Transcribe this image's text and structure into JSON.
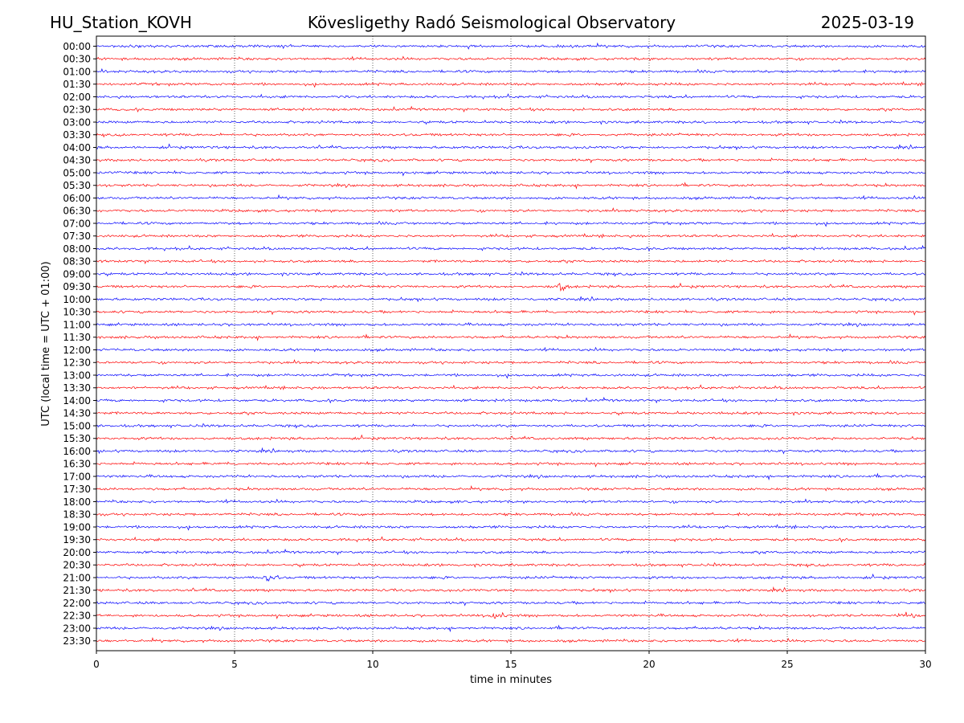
{
  "header": {
    "station": "HU_Station_KOVH",
    "observatory": "Kövesligethy Radó Seismological Observatory",
    "date": "2025-03-19"
  },
  "chart_data": {
    "type": "line",
    "title": "Kövesligethy Radó Seismological Observatory",
    "xlabel": "time in minutes",
    "ylabel": "UTC (local time = UTC + 01:00)",
    "xlim": [
      0,
      30
    ],
    "x_ticks": [
      "0",
      "5",
      "10",
      "15",
      "20",
      "25",
      "30"
    ],
    "grid_x": true,
    "row_labels": [
      "00:00",
      "00:30",
      "01:00",
      "01:30",
      "02:00",
      "02:30",
      "03:00",
      "03:30",
      "04:00",
      "04:30",
      "05:00",
      "05:30",
      "06:00",
      "06:30",
      "07:00",
      "07:30",
      "08:00",
      "08:30",
      "09:00",
      "09:30",
      "10:00",
      "10:30",
      "11:00",
      "11:30",
      "12:00",
      "12:30",
      "13:00",
      "13:30",
      "14:00",
      "14:30",
      "15:00",
      "15:30",
      "16:00",
      "16:30",
      "17:00",
      "17:30",
      "18:00",
      "18:30",
      "19:00",
      "19:30",
      "20:00",
      "20:30",
      "21:00",
      "21:30",
      "22:00",
      "22:30",
      "23:00",
      "23:30"
    ],
    "trace_colors": [
      "#0000ff",
      "#ff0000"
    ],
    "notable_events": [
      {
        "row": "09:30",
        "minute": 16.8
      },
      {
        "row": "21:00",
        "minute": 6.3
      },
      {
        "row": "22:30",
        "minute": 14.5
      },
      {
        "row": "22:30",
        "minute": 29.3
      }
    ]
  }
}
